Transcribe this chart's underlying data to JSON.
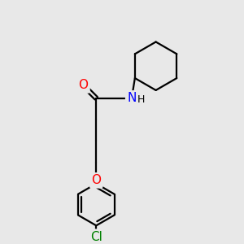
{
  "background_color": "#e8e8e8",
  "bond_color": "#000000",
  "atom_colors": {
    "O": "#ff0000",
    "N": "#0000ff",
    "Cl": "#008000",
    "H": "#000000"
  },
  "figsize": [
    3.0,
    3.0
  ],
  "dpi": 100
}
